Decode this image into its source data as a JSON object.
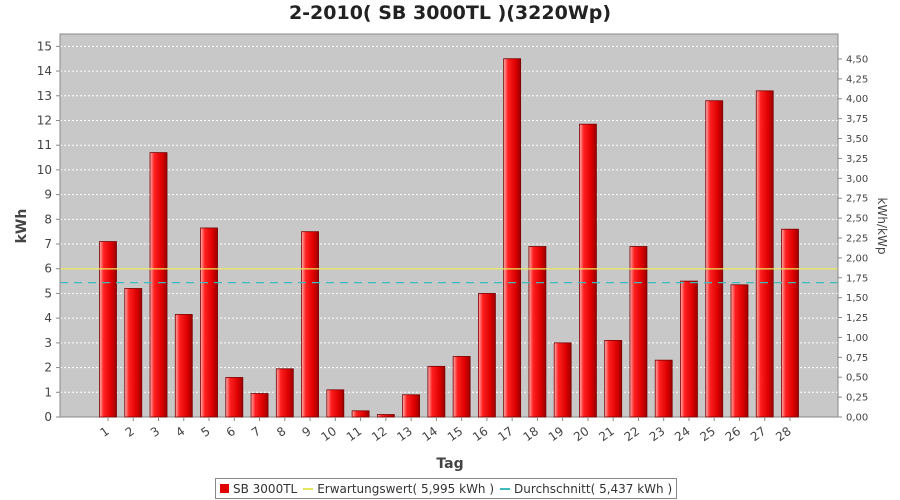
{
  "chart_data": {
    "type": "bar",
    "title": "2-2010( SB 3000TL )(3220Wp)",
    "xlabel": "Tag",
    "ylabel": "kWh",
    "y2label": "kWh/kWp",
    "ylim": [
      0,
      15.5
    ],
    "y2lim": [
      0,
      4.8137
    ],
    "yticks": [
      "0",
      "1",
      "2",
      "3",
      "4",
      "5",
      "6",
      "7",
      "8",
      "9",
      "10",
      "11",
      "12",
      "13",
      "14",
      "15"
    ],
    "y2ticks": [
      "0,00",
      "0,25",
      "0,50",
      "0,75",
      "1,00",
      "1,25",
      "1,50",
      "1,75",
      "2,00",
      "2,25",
      "2,50",
      "2,75",
      "3,00",
      "3,25",
      "3,50",
      "3,75",
      "4,00",
      "4,25",
      "4,50"
    ],
    "categories": [
      "1",
      "2",
      "3",
      "4",
      "5",
      "6",
      "7",
      "8",
      "9",
      "10",
      "11",
      "12",
      "13",
      "14",
      "15",
      "16",
      "17",
      "18",
      "19",
      "20",
      "21",
      "22",
      "23",
      "24",
      "25",
      "26",
      "27",
      "28"
    ],
    "series": [
      {
        "name": "SB 3000TL",
        "color": "#e00000",
        "values": [
          7.1,
          5.2,
          10.7,
          4.15,
          7.65,
          1.6,
          0.95,
          1.95,
          7.5,
          1.1,
          0.25,
          0.1,
          0.9,
          2.05,
          2.45,
          5.0,
          14.5,
          6.9,
          3.0,
          11.85,
          3.1,
          6.9,
          2.3,
          5.5,
          12.8,
          5.35,
          13.2,
          7.6
        ]
      }
    ],
    "reference_lines": [
      {
        "name": "Erwartungswert",
        "value": 5.995,
        "color": "#e8e860",
        "style": "solid"
      },
      {
        "name": "Durchschnitt",
        "value": 5.437,
        "color": "#3cbcbc",
        "style": "dashed"
      }
    ],
    "legend": {
      "position": "bottom",
      "items": [
        "SB 3000TL",
        "Erwartungswert( 5,995 kWh )",
        "Durchschnitt( 5,437 kWh )"
      ]
    },
    "grid": true,
    "plot_background": "#c8c8c8"
  }
}
